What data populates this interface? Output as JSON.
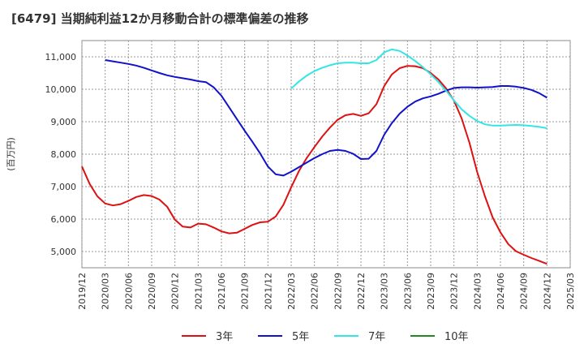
{
  "chart_data": {
    "type": "line",
    "title": "[6479]  当期純利益12か月移動合計の標準偏差の推移",
    "ylabel": "(百万円)",
    "xlabel": "",
    "ylim": [
      4500,
      11500
    ],
    "yticks": [
      5000,
      6000,
      7000,
      8000,
      9000,
      10000,
      11000
    ],
    "ytick_labels": [
      "5,000",
      "6,000",
      "7,000",
      "8,000",
      "9,000",
      "10,000",
      "11,000"
    ],
    "x_range": [
      "2019-12",
      "2025-03"
    ],
    "xtick_labels": [
      "2019/12",
      "2020/03",
      "2020/06",
      "2020/09",
      "2020/12",
      "2021/03",
      "2021/06",
      "2021/09",
      "2021/12",
      "2022/03",
      "2022/06",
      "2022/09",
      "2022/12",
      "2023/03",
      "2023/06",
      "2023/09",
      "2023/12",
      "2024/03",
      "2024/06",
      "2024/09",
      "2024/12",
      "2025/03"
    ],
    "grid": true,
    "legend_position": "bottom",
    "series": [
      {
        "name": "3年",
        "color": "#dd1111",
        "x": [
          "2019-12",
          "2020-01",
          "2020-02",
          "2020-03",
          "2020-04",
          "2020-05",
          "2020-06",
          "2020-07",
          "2020-08",
          "2020-09",
          "2020-10",
          "2020-11",
          "2020-12",
          "2021-01",
          "2021-02",
          "2021-03",
          "2021-04",
          "2021-05",
          "2021-06",
          "2021-07",
          "2021-08",
          "2021-09",
          "2021-10",
          "2021-11",
          "2021-12",
          "2022-01",
          "2022-02",
          "2022-03",
          "2022-04",
          "2022-05",
          "2022-06",
          "2022-07",
          "2022-08",
          "2022-09",
          "2022-10",
          "2022-11",
          "2022-12",
          "2023-01",
          "2023-02",
          "2023-03",
          "2023-04",
          "2023-05",
          "2023-06",
          "2023-07",
          "2023-08",
          "2023-09",
          "2023-10",
          "2023-11",
          "2023-12",
          "2024-01",
          "2024-02",
          "2024-03",
          "2024-04",
          "2024-05",
          "2024-06",
          "2024-07",
          "2024-08",
          "2024-09",
          "2024-10",
          "2024-11",
          "2024-12"
        ],
        "values": [
          7620,
          7080,
          6700,
          6480,
          6420,
          6460,
          6560,
          6680,
          6740,
          6710,
          6600,
          6380,
          5980,
          5770,
          5740,
          5860,
          5840,
          5740,
          5620,
          5560,
          5580,
          5700,
          5820,
          5900,
          5920,
          6080,
          6440,
          6980,
          7480,
          7880,
          8220,
          8540,
          8820,
          9060,
          9200,
          9240,
          9180,
          9260,
          9540,
          10100,
          10460,
          10650,
          10720,
          10710,
          10650,
          10500,
          10300,
          10020,
          9650,
          9100,
          8350,
          7450,
          6700,
          6050,
          5590,
          5230,
          5010,
          4900,
          4800,
          4710,
          4620
        ]
      },
      {
        "name": "5年",
        "color": "#1111cc",
        "x": [
          "2020-03",
          "2020-04",
          "2020-05",
          "2020-06",
          "2020-07",
          "2020-08",
          "2020-09",
          "2020-10",
          "2020-11",
          "2020-12",
          "2021-01",
          "2021-02",
          "2021-03",
          "2021-04",
          "2021-05",
          "2021-06",
          "2021-07",
          "2021-08",
          "2021-09",
          "2021-10",
          "2021-11",
          "2021-12",
          "2022-01",
          "2022-02",
          "2022-03",
          "2022-04",
          "2022-05",
          "2022-06",
          "2022-07",
          "2022-08",
          "2022-09",
          "2022-10",
          "2022-11",
          "2022-12",
          "2023-01",
          "2023-02",
          "2023-03",
          "2023-04",
          "2023-05",
          "2023-06",
          "2023-07",
          "2023-08",
          "2023-09",
          "2023-10",
          "2023-11",
          "2023-12",
          "2024-01",
          "2024-02",
          "2024-03",
          "2024-04",
          "2024-05",
          "2024-06",
          "2024-07",
          "2024-08",
          "2024-09",
          "2024-10",
          "2024-11",
          "2024-12"
        ],
        "values": [
          10900,
          10860,
          10820,
          10780,
          10730,
          10660,
          10580,
          10500,
          10430,
          10380,
          10340,
          10300,
          10250,
          10220,
          10060,
          9800,
          9440,
          9080,
          8720,
          8380,
          8020,
          7620,
          7380,
          7340,
          7460,
          7600,
          7740,
          7880,
          8000,
          8100,
          8130,
          8100,
          8010,
          7850,
          7860,
          8100,
          8600,
          8960,
          9250,
          9460,
          9620,
          9720,
          9780,
          9860,
          9960,
          10040,
          10060,
          10060,
          10050,
          10060,
          10070,
          10100,
          10100,
          10080,
          10040,
          9980,
          9880,
          9740
        ]
      },
      {
        "name": "7年",
        "color": "#33e5e5",
        "x": [
          "2022-03",
          "2022-04",
          "2022-05",
          "2022-06",
          "2022-07",
          "2022-08",
          "2022-09",
          "2022-10",
          "2022-11",
          "2022-12",
          "2023-01",
          "2023-02",
          "2023-03",
          "2023-04",
          "2023-05",
          "2023-06",
          "2023-07",
          "2023-08",
          "2023-09",
          "2023-10",
          "2023-11",
          "2023-12",
          "2024-01",
          "2024-02",
          "2024-03",
          "2024-04",
          "2024-05",
          "2024-06",
          "2024-07",
          "2024-08",
          "2024-09",
          "2024-10",
          "2024-11",
          "2024-12"
        ],
        "values": [
          10020,
          10240,
          10420,
          10560,
          10660,
          10740,
          10800,
          10820,
          10820,
          10800,
          10800,
          10900,
          11140,
          11230,
          11180,
          11040,
          10870,
          10680,
          10460,
          10220,
          9950,
          9660,
          9380,
          9180,
          9020,
          8920,
          8880,
          8880,
          8890,
          8900,
          8890,
          8870,
          8840,
          8800
        ]
      },
      {
        "name": "10年",
        "color": "#228822",
        "x": [],
        "values": []
      }
    ]
  }
}
